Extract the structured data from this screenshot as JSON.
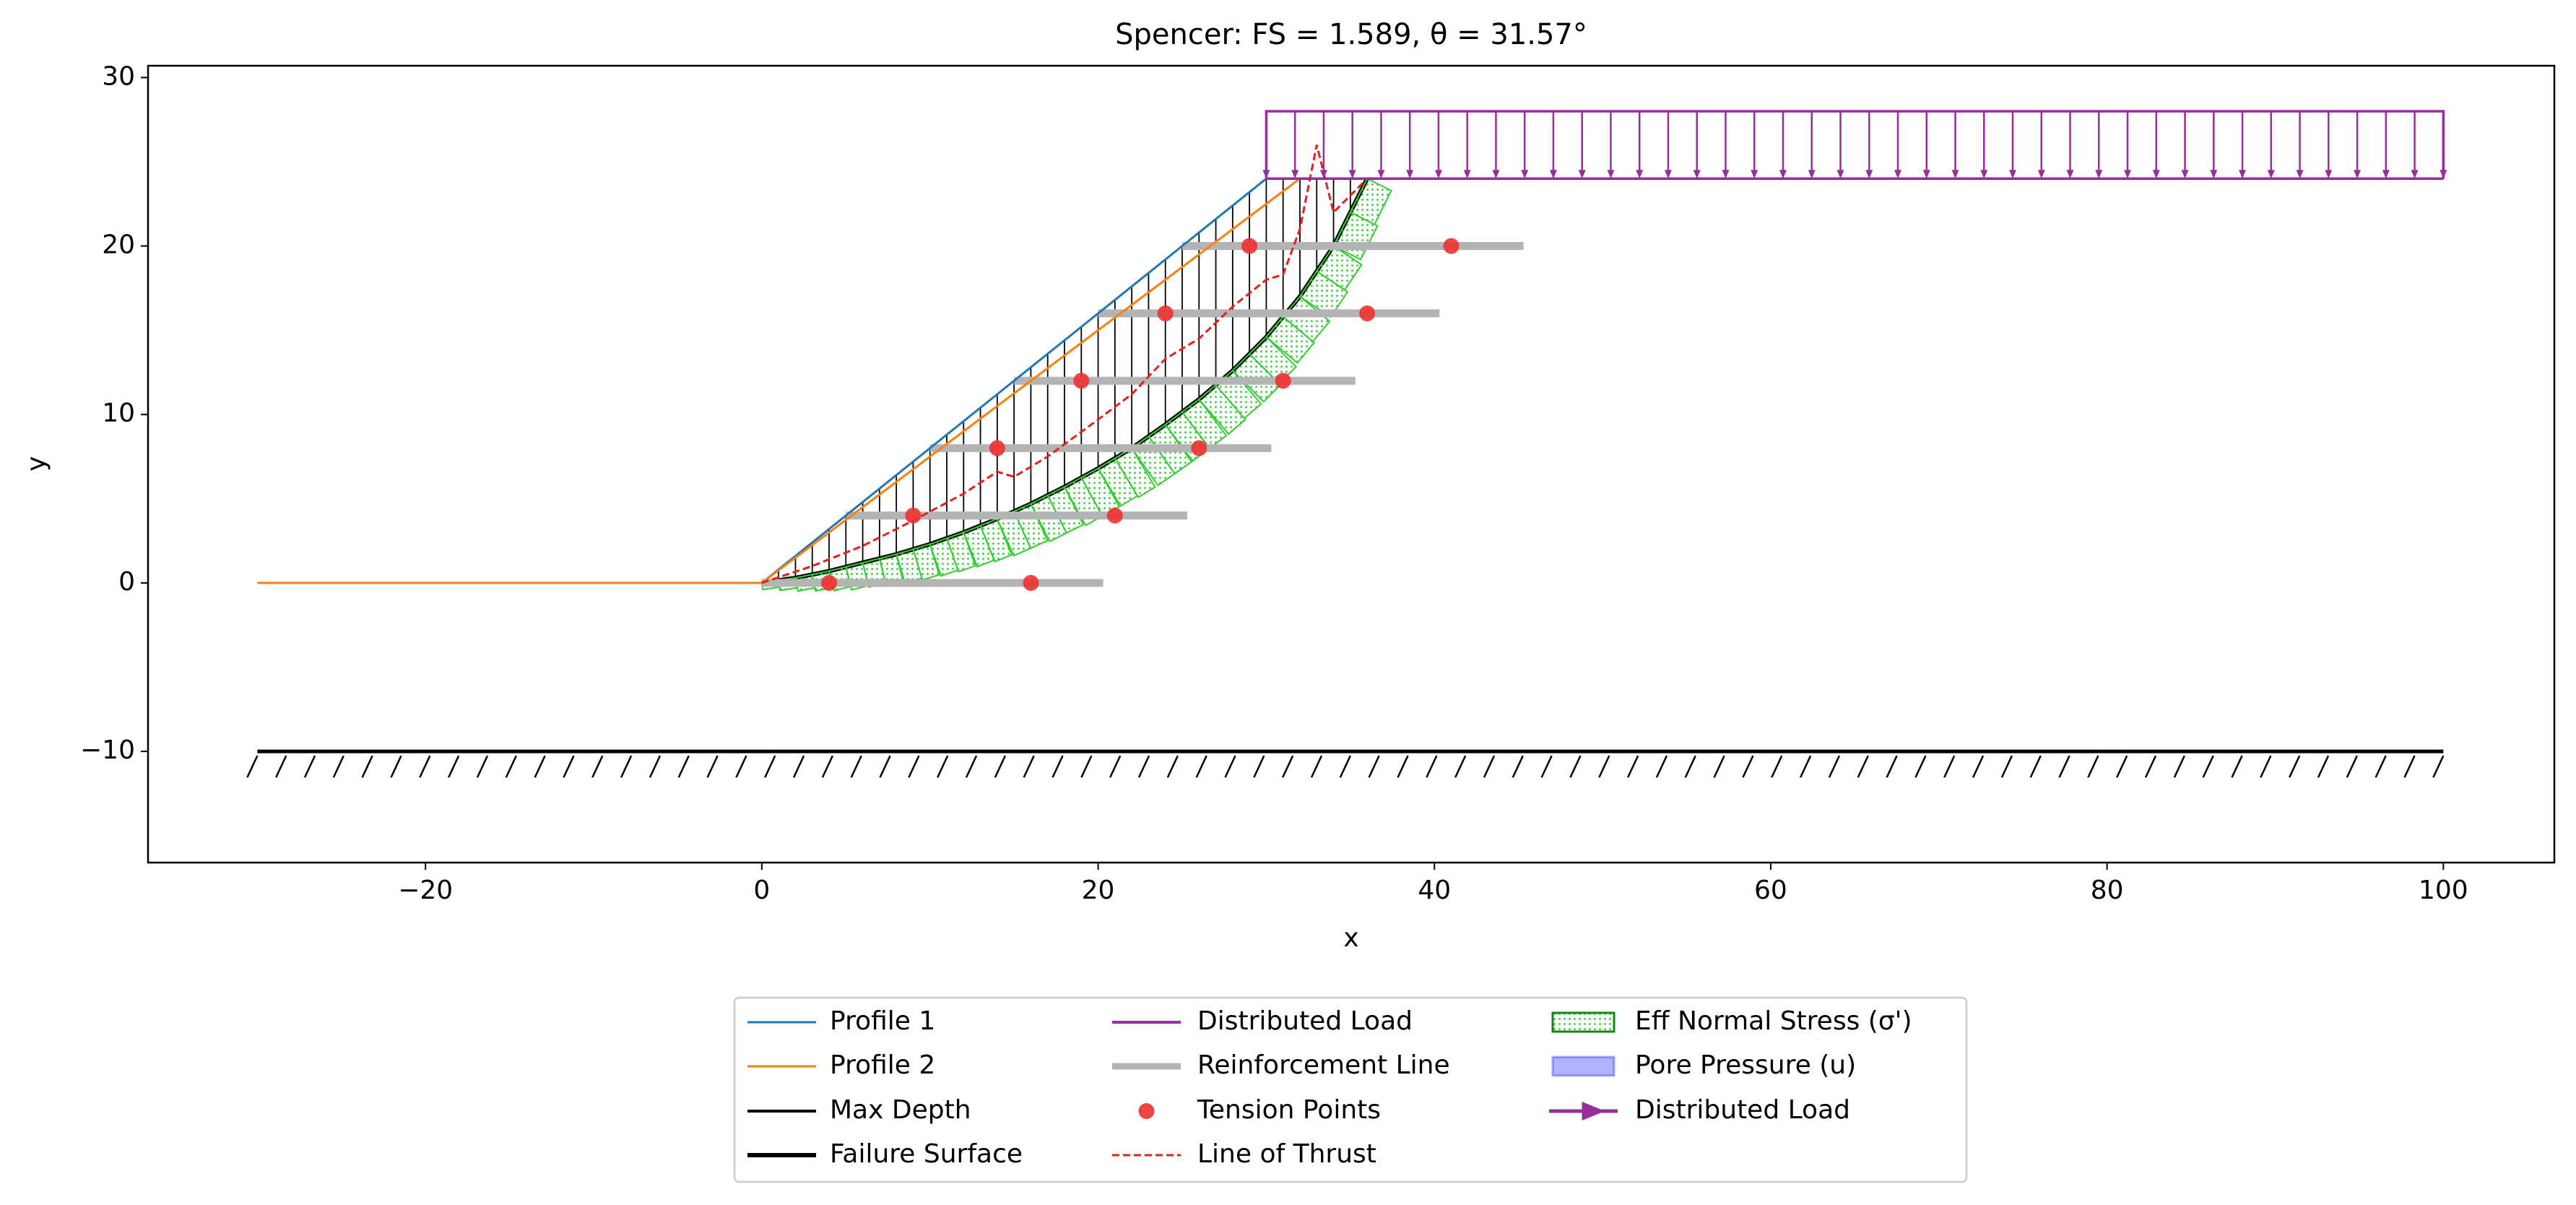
{
  "chart_data": {
    "type": "slope",
    "title": "Spencer: FS = 1.589, θ = 31.57°",
    "xlabel": "x",
    "ylabel": "y",
    "xlim": [
      -36.5,
      106.6
    ],
    "ylim": [
      -16.6,
      30.7
    ],
    "xticks": [
      {
        "value": -20,
        "label": "−20"
      },
      0,
      20,
      40,
      60,
      80,
      100
    ],
    "yticks": [
      {
        "value": -10,
        "label": "−10"
      },
      0,
      10,
      20,
      30
    ],
    "layers": [
      {
        "name": "Profile 1",
        "style": "line",
        "color": "#1f77b4",
        "x": [
          0,
          30
        ],
        "y": [
          0,
          24
        ]
      },
      {
        "name": "Profile 2",
        "style": "line",
        "color": "#ff7f0e",
        "x": [
          -30,
          0,
          32
        ],
        "y": [
          0,
          0,
          24
        ]
      },
      {
        "name": "Max Depth",
        "style": "hatched_line",
        "color": "#000000",
        "x": [
          -30,
          100
        ],
        "y": [
          -10,
          -10
        ]
      },
      {
        "name": "Failure Surface",
        "style": "thick_line",
        "color": "#000000",
        "x": [
          0,
          2,
          4,
          6,
          8,
          10,
          12,
          14,
          16,
          18,
          20,
          22,
          24,
          26,
          28,
          30,
          32,
          34,
          36
        ],
        "y": [
          0,
          0.3,
          0.7,
          1.2,
          1.7,
          2.3,
          3.0,
          3.8,
          4.7,
          5.7,
          6.8,
          8.0,
          9.4,
          10.9,
          12.6,
          14.6,
          17.0,
          20.0,
          24.0
        ]
      },
      {
        "name": "Distributed Load",
        "style": "load",
        "color": "#952f99",
        "x": [
          30,
          100
        ],
        "y": [
          24,
          24
        ],
        "top": [
          28,
          28
        ]
      },
      {
        "name": "Reinforcement Line",
        "style": "segments",
        "color": "#b4b4b4",
        "x_start": [
          0,
          5,
          10,
          15,
          20,
          25
        ],
        "x_end": [
          20.3,
          25.3,
          30.3,
          35.3,
          40.3,
          45.3
        ],
        "y": [
          0,
          4,
          8,
          12,
          16,
          20
        ]
      },
      {
        "name": "Tension Points",
        "style": "scatter",
        "color": "#f03030",
        "x": [
          4,
          16,
          9,
          21,
          14,
          26,
          19,
          31,
          24,
          36,
          29,
          41
        ],
        "y": [
          0,
          0,
          4,
          4,
          8,
          8,
          12,
          12,
          16,
          16,
          20,
          20
        ]
      },
      {
        "name": "Line of Thrust",
        "style": "dashed",
        "color": "#e8201c",
        "x": [
          0,
          3,
          6,
          9,
          12,
          14,
          15,
          17,
          20,
          22,
          24,
          26,
          28,
          30,
          31,
          32,
          33,
          34,
          35.8
        ],
        "y": [
          0,
          1,
          2.2,
          3.7,
          5.3,
          6.6,
          6.3,
          7.5,
          9.7,
          11.2,
          13.3,
          14.5,
          16.4,
          18,
          18.3,
          21,
          26,
          22,
          23.8
        ]
      },
      {
        "name": "Eff Normal Stress (σ')",
        "style": "stress",
        "color": "#33cc33",
        "values": [
          0.4,
          0.6,
          0.8,
          1.0,
          1.2,
          1.4,
          1.5,
          1.7,
          1.8,
          1.9,
          2.0,
          2.1,
          2.2,
          2.3,
          2.4,
          2.4,
          2.5,
          2.5,
          2.6,
          2.6,
          2.6,
          2.7,
          2.7,
          2.7,
          2.7,
          2.7,
          2.7,
          2.6,
          2.6,
          2.5,
          2.4,
          2.3,
          2.2,
          2.0,
          1.8,
          1.6
        ]
      },
      {
        "name": "Pore Pressure (u)",
        "style": "patch",
        "color": "#0000ff",
        "alpha": 0.3
      },
      {
        "name": "Distributed Load",
        "style": "arrow",
        "color": "#952f99"
      }
    ]
  }
}
